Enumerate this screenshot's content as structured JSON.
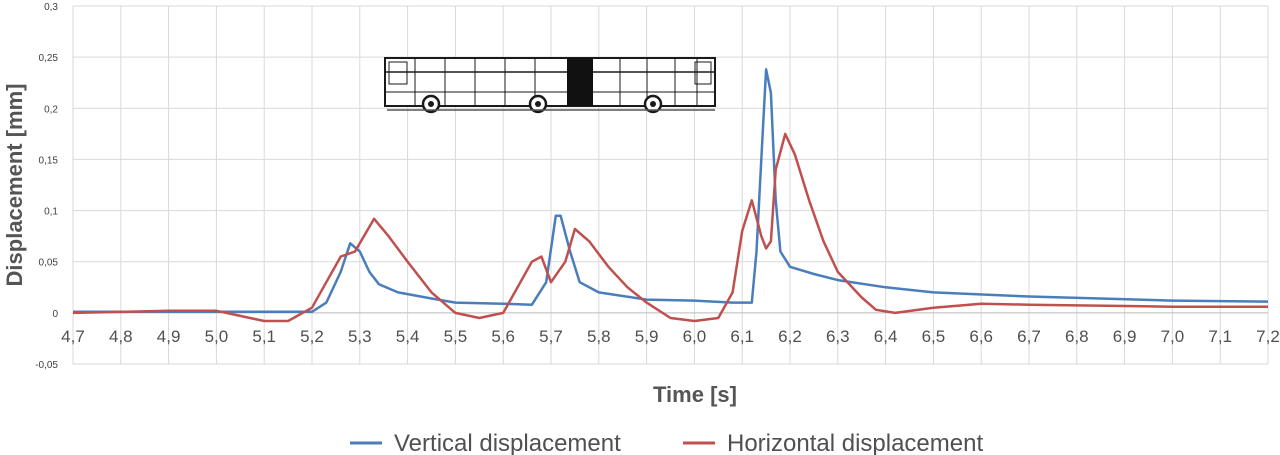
{
  "chart_data": {
    "type": "line",
    "xlabel": "Time  [s]",
    "ylabel": "Displacement [mm]",
    "xlim": [
      4.7,
      7.2
    ],
    "ylim": [
      -0.05,
      0.3
    ],
    "x_ticks": [
      "4,7",
      "4,8",
      "4,9",
      "5,0",
      "5,1",
      "5,2",
      "5,3",
      "5,4",
      "5,5",
      "5,6",
      "5,7",
      "5,8",
      "5,9",
      "6,0",
      "6,1",
      "6,2",
      "6,3",
      "6,4",
      "6,5",
      "6,6",
      "6,7",
      "6,8",
      "6,9",
      "7,0",
      "7,1",
      "7,2"
    ],
    "y_ticks": [
      "-0,05",
      "0",
      "0,05",
      "0,1",
      "0,15",
      "0,2",
      "0,25",
      "0,3"
    ],
    "grid": true,
    "legend_position": "bottom",
    "series": [
      {
        "name": "Vertical displacement",
        "color": "#4a7ebb",
        "points": [
          [
            4.7,
            0.001
          ],
          [
            5.2,
            0.001
          ],
          [
            5.23,
            0.01
          ],
          [
            5.26,
            0.04
          ],
          [
            5.28,
            0.068
          ],
          [
            5.3,
            0.06
          ],
          [
            5.32,
            0.04
          ],
          [
            5.34,
            0.028
          ],
          [
            5.38,
            0.02
          ],
          [
            5.45,
            0.014
          ],
          [
            5.5,
            0.01
          ],
          [
            5.6,
            0.009
          ],
          [
            5.66,
            0.008
          ],
          [
            5.69,
            0.03
          ],
          [
            5.71,
            0.095
          ],
          [
            5.72,
            0.095
          ],
          [
            5.74,
            0.06
          ],
          [
            5.76,
            0.03
          ],
          [
            5.8,
            0.02
          ],
          [
            5.9,
            0.013
          ],
          [
            6.0,
            0.012
          ],
          [
            6.08,
            0.01
          ],
          [
            6.12,
            0.01
          ],
          [
            6.13,
            0.06
          ],
          [
            6.14,
            0.15
          ],
          [
            6.15,
            0.238
          ],
          [
            6.16,
            0.215
          ],
          [
            6.17,
            0.11
          ],
          [
            6.18,
            0.06
          ],
          [
            6.2,
            0.045
          ],
          [
            6.25,
            0.038
          ],
          [
            6.3,
            0.032
          ],
          [
            6.4,
            0.025
          ],
          [
            6.5,
            0.02
          ],
          [
            6.7,
            0.016
          ],
          [
            7.0,
            0.012
          ],
          [
            7.2,
            0.011
          ]
        ]
      },
      {
        "name": "Horizontal displacement",
        "color": "#c0504d",
        "points": [
          [
            4.7,
            0.0
          ],
          [
            4.9,
            0.002
          ],
          [
            5.0,
            0.002
          ],
          [
            5.05,
            -0.003
          ],
          [
            5.1,
            -0.008
          ],
          [
            5.15,
            -0.008
          ],
          [
            5.2,
            0.005
          ],
          [
            5.23,
            0.03
          ],
          [
            5.26,
            0.055
          ],
          [
            5.29,
            0.06
          ],
          [
            5.33,
            0.092
          ],
          [
            5.36,
            0.075
          ],
          [
            5.4,
            0.05
          ],
          [
            5.45,
            0.02
          ],
          [
            5.5,
            0.0
          ],
          [
            5.55,
            -0.005
          ],
          [
            5.6,
            0.0
          ],
          [
            5.66,
            0.05
          ],
          [
            5.68,
            0.055
          ],
          [
            5.7,
            0.03
          ],
          [
            5.73,
            0.05
          ],
          [
            5.75,
            0.082
          ],
          [
            5.78,
            0.07
          ],
          [
            5.82,
            0.045
          ],
          [
            5.86,
            0.025
          ],
          [
            5.9,
            0.01
          ],
          [
            5.95,
            -0.005
          ],
          [
            6.0,
            -0.008
          ],
          [
            6.05,
            -0.005
          ],
          [
            6.08,
            0.02
          ],
          [
            6.1,
            0.08
          ],
          [
            6.12,
            0.11
          ],
          [
            6.14,
            0.075
          ],
          [
            6.15,
            0.063
          ],
          [
            6.16,
            0.07
          ],
          [
            6.17,
            0.14
          ],
          [
            6.19,
            0.175
          ],
          [
            6.21,
            0.155
          ],
          [
            6.24,
            0.11
          ],
          [
            6.27,
            0.07
          ],
          [
            6.3,
            0.04
          ],
          [
            6.35,
            0.015
          ],
          [
            6.38,
            0.003
          ],
          [
            6.42,
            0.0
          ],
          [
            6.5,
            0.005
          ],
          [
            6.6,
            0.009
          ],
          [
            6.7,
            0.008
          ],
          [
            7.0,
            0.006
          ],
          [
            7.2,
            0.006
          ]
        ]
      }
    ]
  },
  "icons": {
    "bus": "bus-icon"
  }
}
